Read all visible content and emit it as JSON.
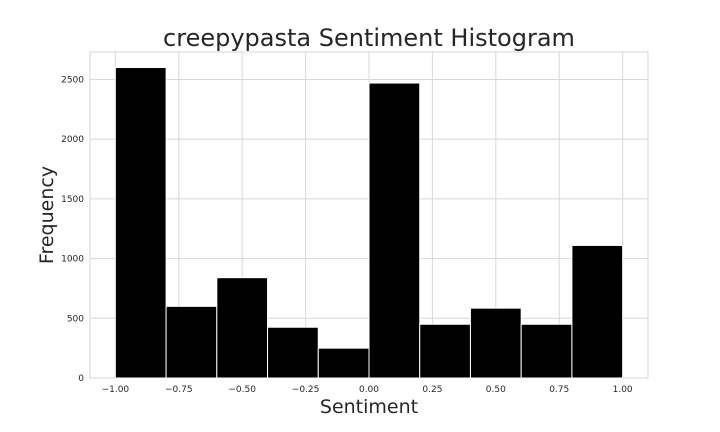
{
  "chart_data": {
    "type": "bar",
    "title": "creepypasta Sentiment Histogram",
    "xlabel": "Sentiment",
    "ylabel": "Frequency",
    "xlim": [
      -1.1,
      1.1
    ],
    "ylim": [
      0,
      2730
    ],
    "grid": true,
    "x_ticks": [
      -1.0,
      -0.75,
      -0.5,
      -0.25,
      0.0,
      0.25,
      0.5,
      0.75,
      1.0
    ],
    "x_tick_labels": [
      "−1.00",
      "−0.75",
      "−0.50",
      "−0.25",
      "0.00",
      "0.25",
      "0.50",
      "0.75",
      "1.00"
    ],
    "y_ticks": [
      0,
      500,
      1000,
      1500,
      2000,
      2500
    ],
    "y_tick_labels": [
      "0",
      "500",
      "1000",
      "1500",
      "2000",
      "2500"
    ],
    "bin_edges": [
      -1.0,
      -0.8,
      -0.6,
      -0.4,
      -0.2,
      0.0,
      0.2,
      0.4,
      0.6,
      0.8,
      1.0
    ],
    "values": [
      2600,
      600,
      840,
      425,
      250,
      2470,
      450,
      585,
      450,
      1110
    ],
    "bar_color": "#000000"
  }
}
